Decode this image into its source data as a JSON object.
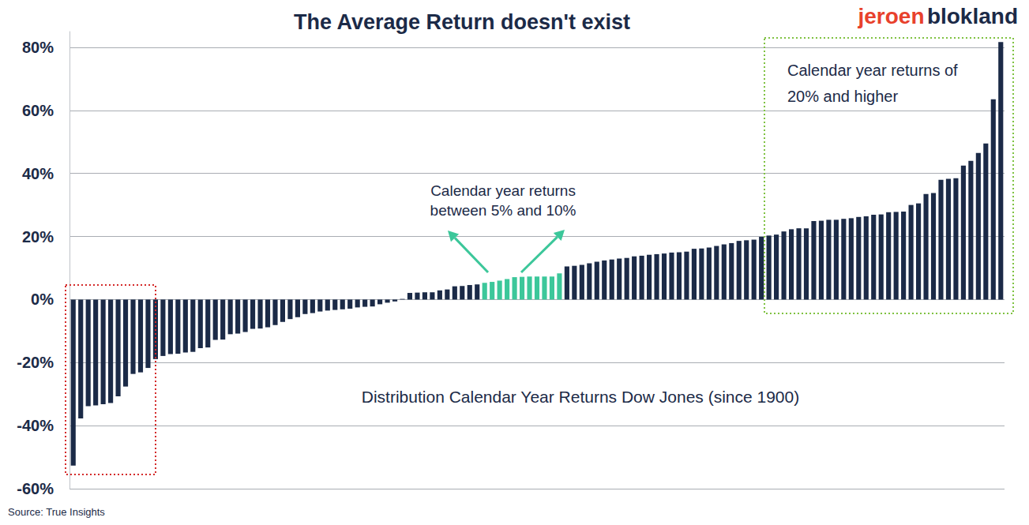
{
  "chart_data": {
    "type": "bar",
    "title": "The Average Return doesn't exist",
    "brand": "jeroen blokland",
    "subtitle": "Distribution Calendar Year Returns Dow Jones (since 1900)",
    "source": "Source: True Insights",
    "annotations": [
      "Calendar year returns\nbetween 5% and 10%",
      "Calendar year returns of\n20% and higher"
    ],
    "categories": [
      null,
      null,
      null,
      null,
      null,
      null,
      null,
      null,
      null,
      null,
      null,
      null,
      null,
      null,
      null,
      null,
      null,
      null,
      null,
      null,
      null,
      null,
      null,
      null,
      null,
      null,
      null,
      null,
      null,
      null,
      null,
      null,
      null,
      null,
      null,
      null,
      null,
      null,
      null,
      null,
      null,
      null,
      null,
      null,
      null,
      null,
      null,
      null,
      null,
      null,
      null,
      null,
      null,
      null,
      null,
      null,
      null,
      null,
      null,
      null,
      null,
      null,
      null,
      null,
      null,
      null,
      null,
      null,
      null,
      null,
      null,
      null,
      null,
      null,
      null,
      null,
      null,
      null,
      null,
      null,
      null,
      null,
      null,
      null,
      null,
      null,
      null,
      null,
      null,
      null,
      null,
      null,
      null,
      null,
      null,
      null,
      null,
      null,
      null,
      null,
      null,
      null,
      null,
      null,
      null,
      null,
      null,
      null,
      null,
      null,
      null,
      null,
      null,
      null,
      null,
      null,
      null,
      null,
      null,
      null,
      null,
      null,
      null,
      null,
      null
    ],
    "values": [
      -52.7,
      -37.7,
      -33.8,
      -33.6,
      -33.2,
      -32.8,
      -30.7,
      -27.6,
      -23.6,
      -23.1,
      -21.7,
      -18.9,
      -17.9,
      -17.3,
      -17.2,
      -16.8,
      -16.6,
      -15.4,
      -15.2,
      -12.8,
      -12.7,
      -11,
      -10.8,
      -10.3,
      -9.3,
      -9.2,
      -8.8,
      -8.1,
      -7.1,
      -6.2,
      -5.6,
      -4.6,
      -4.3,
      -3.8,
      -3.5,
      -3.3,
      -3.1,
      -2.9,
      -2.5,
      -2.3,
      -2.2,
      -1.5,
      -1,
      -0.6,
      0.2,
      2.1,
      2.2,
      2.3,
      2.3,
      2.9,
      3.2,
      4.2,
      4.3,
      4.6,
      4.8,
      5.3,
      5.6,
      6,
      6.5,
      7.1,
      7.2,
      7.3,
      7.3,
      7.3,
      7.3,
      8.3,
      10.5,
      10.7,
      11,
      11.5,
      12,
      12.4,
      12.7,
      13,
      13.2,
      13.7,
      13.9,
      14.2,
      14.4,
      14.6,
      14.9,
      15,
      15.2,
      16.1,
      16.2,
      16.5,
      17,
      17.5,
      17.9,
      18.6,
      18.8,
      19,
      19.9,
      20.3,
      20.6,
      21.6,
      22.3,
      22.6,
      22.6,
      24.9,
      25,
      25.3,
      25.3,
      25.6,
      25.8,
      26.2,
      26.4,
      26.9,
      27,
      27.7,
      27.8,
      27.9,
      30,
      30.5,
      33.5,
      33.8,
      38,
      38.3,
      38.5,
      42.5,
      44,
      46.5,
      49.5,
      63.5,
      81.7
    ],
    "colors": [
      "#1b2a47",
      "#1b2a47",
      "#1b2a47",
      "#1b2a47",
      "#1b2a47",
      "#1b2a47",
      "#1b2a47",
      "#1b2a47",
      "#1b2a47",
      "#1b2a47",
      "#1b2a47",
      "#1b2a47",
      "#1b2a47",
      "#1b2a47",
      "#1b2a47",
      "#1b2a47",
      "#1b2a47",
      "#1b2a47",
      "#1b2a47",
      "#1b2a47",
      "#1b2a47",
      "#1b2a47",
      "#1b2a47",
      "#1b2a47",
      "#1b2a47",
      "#1b2a47",
      "#1b2a47",
      "#1b2a47",
      "#1b2a47",
      "#1b2a47",
      "#1b2a47",
      "#1b2a47",
      "#1b2a47",
      "#1b2a47",
      "#1b2a47",
      "#1b2a47",
      "#1b2a47",
      "#1b2a47",
      "#1b2a47",
      "#1b2a47",
      "#1b2a47",
      "#1b2a47",
      "#1b2a47",
      "#1b2a47",
      "#1b2a47",
      "#1b2a47",
      "#1b2a47",
      "#1b2a47",
      "#1b2a47",
      "#1b2a47",
      "#1b2a47",
      "#1b2a47",
      "#1b2a47",
      "#1b2a47",
      "#1b2a47",
      "#3cc79a",
      "#3cc79a",
      "#3cc79a",
      "#3cc79a",
      "#3cc79a",
      "#3cc79a",
      "#3cc79a",
      "#3cc79a",
      "#3cc79a",
      "#3cc79a",
      "#3cc79a",
      "#1b2a47",
      "#1b2a47",
      "#1b2a47",
      "#1b2a47",
      "#1b2a47",
      "#1b2a47",
      "#1b2a47",
      "#1b2a47",
      "#1b2a47",
      "#1b2a47",
      "#1b2a47",
      "#1b2a47",
      "#1b2a47",
      "#1b2a47",
      "#1b2a47",
      "#1b2a47",
      "#1b2a47",
      "#1b2a47",
      "#1b2a47",
      "#1b2a47",
      "#1b2a47",
      "#1b2a47",
      "#1b2a47",
      "#1b2a47",
      "#1b2a47",
      "#1b2a47",
      "#1b2a47",
      "#1b2a47",
      "#1b2a47",
      "#1b2a47",
      "#1b2a47",
      "#1b2a47",
      "#1b2a47",
      "#1b2a47",
      "#1b2a47",
      "#1b2a47",
      "#1b2a47",
      "#1b2a47",
      "#1b2a47",
      "#1b2a47",
      "#1b2a47",
      "#1b2a47",
      "#1b2a47",
      "#1b2a47",
      "#1b2a47",
      "#1b2a47",
      "#1b2a47",
      "#1b2a47",
      "#1b2a47",
      "#1b2a47",
      "#1b2a47",
      "#1b2a47",
      "#1b2a47",
      "#1b2a47",
      "#1b2a47",
      "#1b2a47",
      "#1b2a47",
      "#1b2a47",
      "#1b2a47"
    ],
    "ylim": [
      -60,
      85
    ],
    "yticks": [
      {
        "value": -60,
        "label": "-60%"
      },
      {
        "value": -40,
        "label": "-40%"
      },
      {
        "value": -20,
        "label": "-20%"
      },
      {
        "value": 0,
        "label": "0%"
      },
      {
        "value": 20,
        "label": "20%"
      },
      {
        "value": 40,
        "label": "40%"
      },
      {
        "value": 60,
        "label": "60%"
      },
      {
        "value": 80,
        "label": "80%"
      }
    ],
    "grid": true,
    "tick_labels": "y"
  }
}
